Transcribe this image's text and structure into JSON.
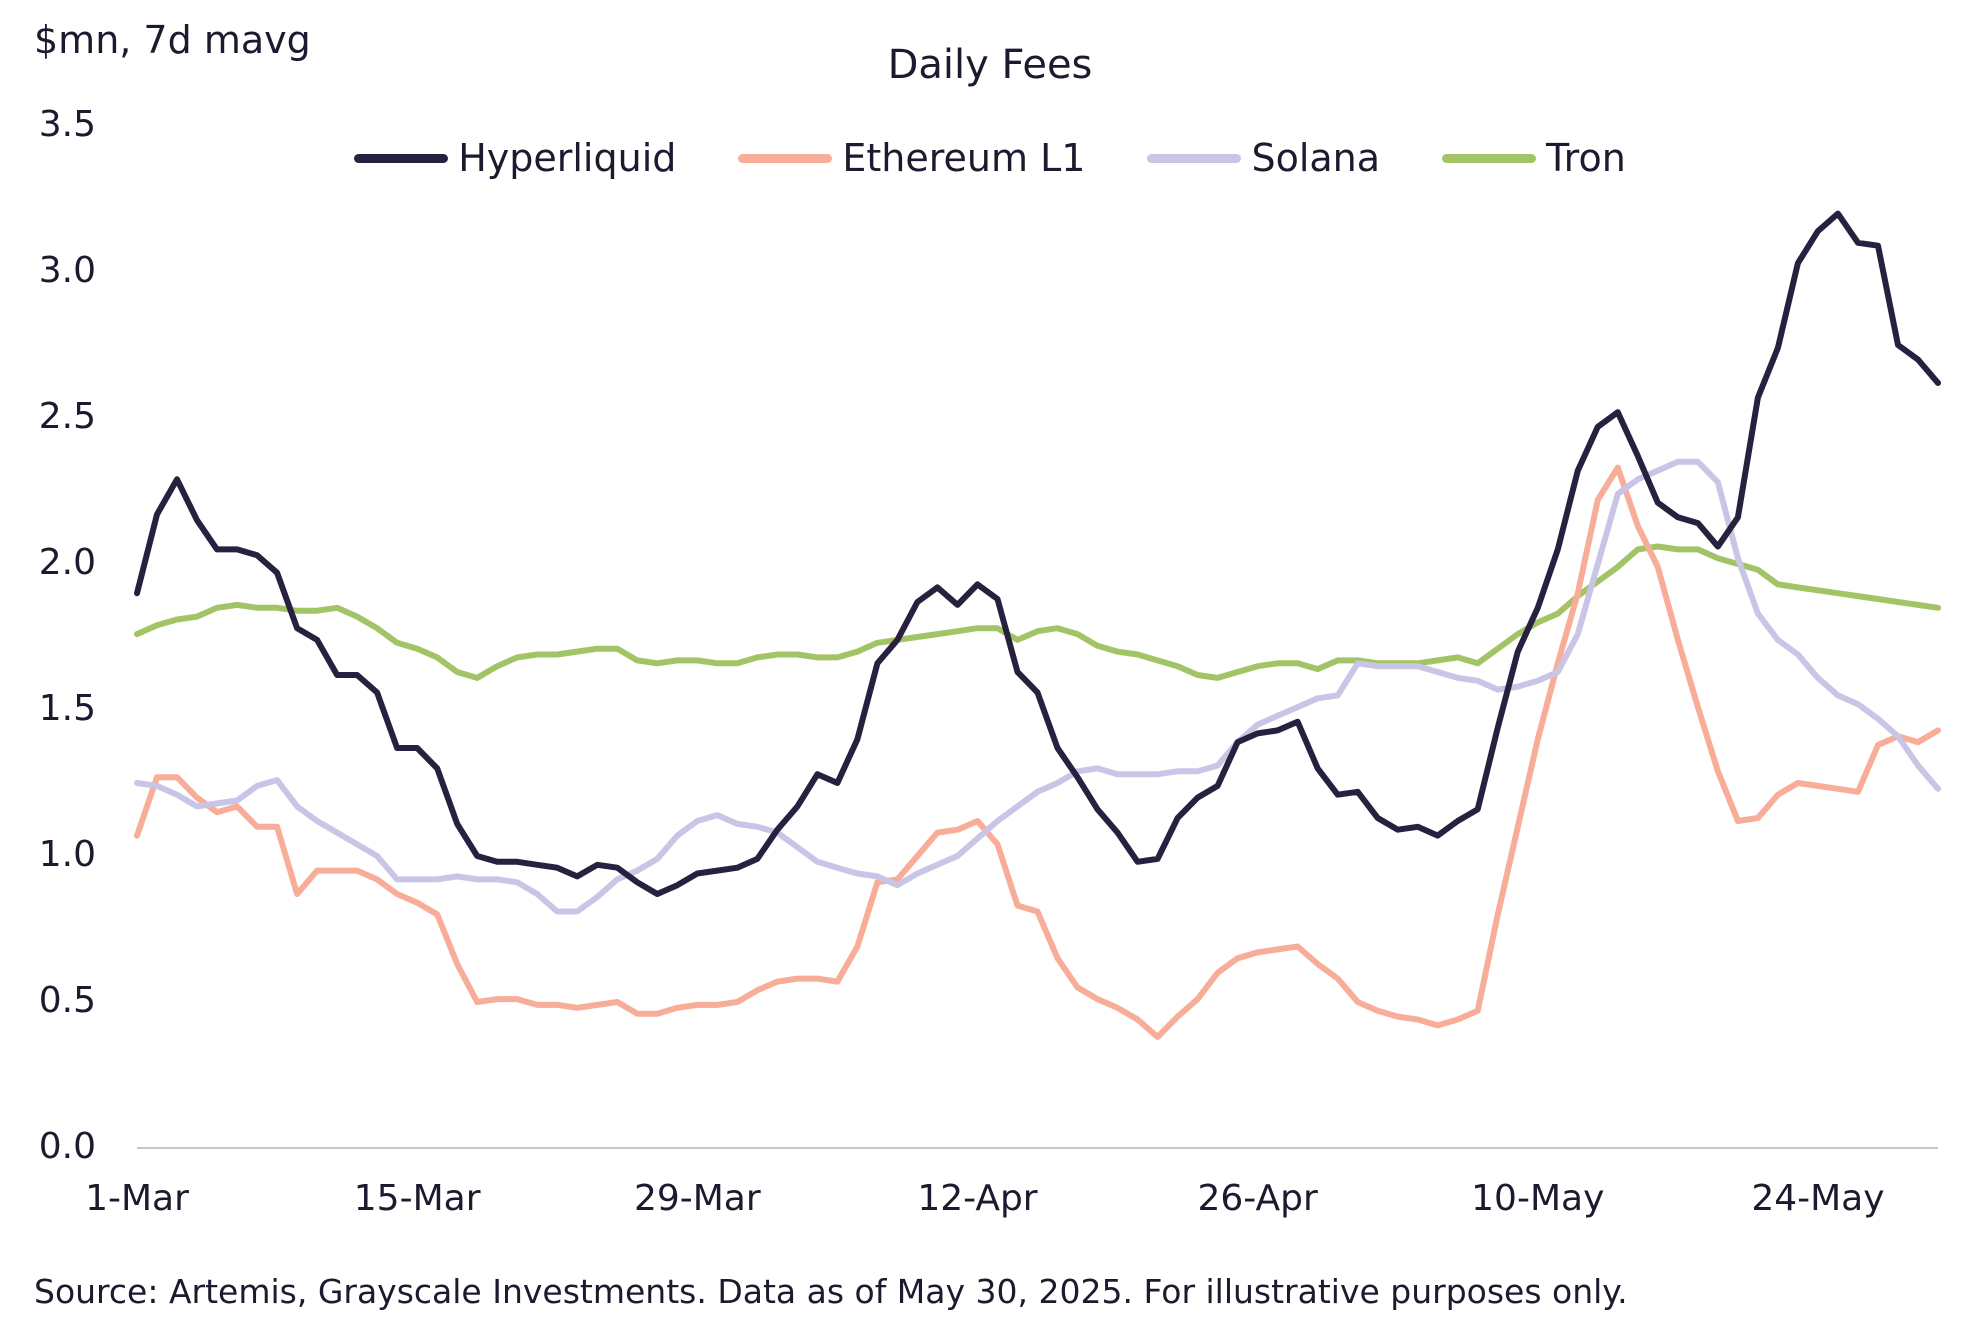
{
  "chart_data": {
    "type": "line",
    "title": "Daily Fees",
    "ylabel": "$mn, 7d mavg",
    "xlabel": "",
    "ylim": [
      0,
      3.5
    ],
    "yticks": [
      "0.0",
      "0.5",
      "1.0",
      "1.5",
      "2.0",
      "2.5",
      "3.0",
      "3.5"
    ],
    "xtick_labels": [
      "1-Mar",
      "15-Mar",
      "29-Mar",
      "12-Apr",
      "26-Apr",
      "10-May",
      "24-May"
    ],
    "x_start": "2025-03-01",
    "x_end": "2025-05-30",
    "grid": false,
    "legend_position": "top-center",
    "series": [
      {
        "name": "Hyperliquid",
        "color": "#27213f",
        "values": [
          1.9,
          2.17,
          2.29,
          2.15,
          2.05,
          2.05,
          2.03,
          1.97,
          1.78,
          1.74,
          1.62,
          1.62,
          1.56,
          1.37,
          1.37,
          1.3,
          1.11,
          1.0,
          0.98,
          0.98,
          0.97,
          0.96,
          0.93,
          0.97,
          0.96,
          0.91,
          0.87,
          0.9,
          0.94,
          0.95,
          0.96,
          0.99,
          1.09,
          1.17,
          1.28,
          1.25,
          1.4,
          1.66,
          1.74,
          1.87,
          1.92,
          1.86,
          1.93,
          1.88,
          1.63,
          1.56,
          1.37,
          1.27,
          1.16,
          1.08,
          0.98,
          0.99,
          1.13,
          1.2,
          1.24,
          1.39,
          1.42,
          1.43,
          1.46,
          1.3,
          1.21,
          1.22,
          1.13,
          1.09,
          1.1,
          1.07,
          1.12,
          1.16,
          1.44,
          1.7,
          1.85,
          2.05,
          2.32,
          2.47,
          2.52,
          2.37,
          2.21,
          2.16,
          2.14,
          2.06,
          2.16,
          2.57,
          2.74,
          3.03,
          3.14,
          3.2,
          3.1,
          3.09,
          2.75,
          2.7,
          2.62
        ]
      },
      {
        "name": "Ethereum L1",
        "color": "#f7ad98",
        "values": [
          1.07,
          1.27,
          1.27,
          1.2,
          1.15,
          1.17,
          1.1,
          1.1,
          0.87,
          0.95,
          0.95,
          0.95,
          0.92,
          0.87,
          0.84,
          0.8,
          0.63,
          0.5,
          0.51,
          0.51,
          0.49,
          0.49,
          0.48,
          0.49,
          0.5,
          0.46,
          0.46,
          0.48,
          0.49,
          0.49,
          0.5,
          0.54,
          0.57,
          0.58,
          0.58,
          0.57,
          0.69,
          0.91,
          0.92,
          1.0,
          1.08,
          1.09,
          1.12,
          1.04,
          0.83,
          0.81,
          0.65,
          0.55,
          0.51,
          0.48,
          0.44,
          0.38,
          0.45,
          0.51,
          0.6,
          0.65,
          0.67,
          0.68,
          0.69,
          0.63,
          0.58,
          0.5,
          0.47,
          0.45,
          0.44,
          0.42,
          0.44,
          0.47,
          0.8,
          1.1,
          1.4,
          1.66,
          1.9,
          2.22,
          2.33,
          2.13,
          1.99,
          1.74,
          1.51,
          1.29,
          1.12,
          1.13,
          1.21,
          1.25,
          1.24,
          1.23,
          1.22,
          1.38,
          1.41,
          1.39,
          1.43
        ]
      },
      {
        "name": "Solana",
        "color": "#c9c5e7",
        "values": [
          1.25,
          1.24,
          1.21,
          1.17,
          1.18,
          1.19,
          1.24,
          1.26,
          1.17,
          1.12,
          1.08,
          1.04,
          1.0,
          0.92,
          0.92,
          0.92,
          0.93,
          0.92,
          0.92,
          0.91,
          0.87,
          0.81,
          0.81,
          0.86,
          0.92,
          0.95,
          0.99,
          1.07,
          1.12,
          1.14,
          1.11,
          1.1,
          1.08,
          1.03,
          0.98,
          0.96,
          0.94,
          0.93,
          0.9,
          0.94,
          0.97,
          1.0,
          1.06,
          1.12,
          1.17,
          1.22,
          1.25,
          1.29,
          1.3,
          1.28,
          1.28,
          1.28,
          1.29,
          1.29,
          1.31,
          1.39,
          1.45,
          1.48,
          1.51,
          1.54,
          1.55,
          1.66,
          1.65,
          1.65,
          1.65,
          1.63,
          1.61,
          1.6,
          1.57,
          1.58,
          1.6,
          1.63,
          1.76,
          2.0,
          2.24,
          2.29,
          2.32,
          2.35,
          2.35,
          2.28,
          2.02,
          1.83,
          1.74,
          1.69,
          1.61,
          1.55,
          1.52,
          1.47,
          1.41,
          1.31,
          1.23
        ]
      },
      {
        "name": "Tron",
        "color": "#a3c466",
        "values": [
          1.76,
          1.79,
          1.81,
          1.82,
          1.85,
          1.86,
          1.85,
          1.85,
          1.84,
          1.84,
          1.85,
          1.82,
          1.78,
          1.73,
          1.71,
          1.68,
          1.63,
          1.61,
          1.65,
          1.68,
          1.69,
          1.69,
          1.7,
          1.71,
          1.71,
          1.67,
          1.66,
          1.67,
          1.67,
          1.66,
          1.66,
          1.68,
          1.69,
          1.69,
          1.68,
          1.68,
          1.7,
          1.73,
          1.74,
          1.75,
          1.76,
          1.77,
          1.78,
          1.78,
          1.74,
          1.77,
          1.78,
          1.76,
          1.72,
          1.7,
          1.69,
          1.67,
          1.65,
          1.62,
          1.61,
          1.63,
          1.65,
          1.66,
          1.66,
          1.64,
          1.67,
          1.67,
          1.66,
          1.66,
          1.66,
          1.67,
          1.68,
          1.66,
          1.71,
          1.76,
          1.8,
          1.83,
          1.89,
          1.94,
          1.99,
          2.05,
          2.06,
          2.05,
          2.05,
          2.02,
          2.0,
          1.98,
          1.93,
          1.92,
          1.91,
          1.9,
          1.89,
          1.88,
          1.87,
          1.86,
          1.85
        ]
      }
    ]
  },
  "footer": {
    "source": "Source: Artemis, Grayscale Investments. Data as of May 30, 2025. For illustrative purposes only."
  }
}
